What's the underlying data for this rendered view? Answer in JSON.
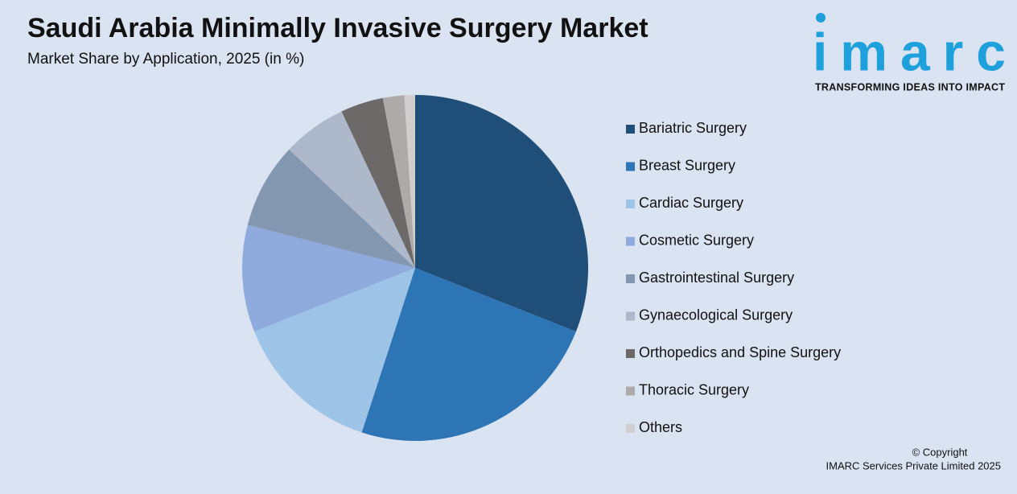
{
  "chart_data": {
    "type": "pie",
    "title": "Saudi Arabia Minimally Invasive Surgery Market",
    "subtitle": "Market Share by Application, 2025 (in %)",
    "categories": [
      "Bariatric Surgery",
      "Breast Surgery",
      "Cardiac Surgery",
      "Cosmetic Surgery",
      "Gastrointestinal Surgery",
      "Gynaecological Surgery",
      "Orthopedics and Spine Surgery",
      "Thoracic Surgery",
      "Others"
    ],
    "values": [
      31,
      24,
      14,
      10,
      8,
      6,
      4,
      2,
      1
    ],
    "colors": [
      "#1f4e79",
      "#2e75b6",
      "#9dc3e6",
      "#8faadc",
      "#8497b0",
      "#adb9ca",
      "#6d6968",
      "#aeaaaa",
      "#d0cece"
    ],
    "legend": "right"
  },
  "logo": {
    "name": "imarc",
    "tagline": "TRANSFORMING IDEAS INTO IMPACT"
  },
  "footer": {
    "copyright": "© Copyright",
    "company": "IMARC Services Private Limited 2025"
  }
}
